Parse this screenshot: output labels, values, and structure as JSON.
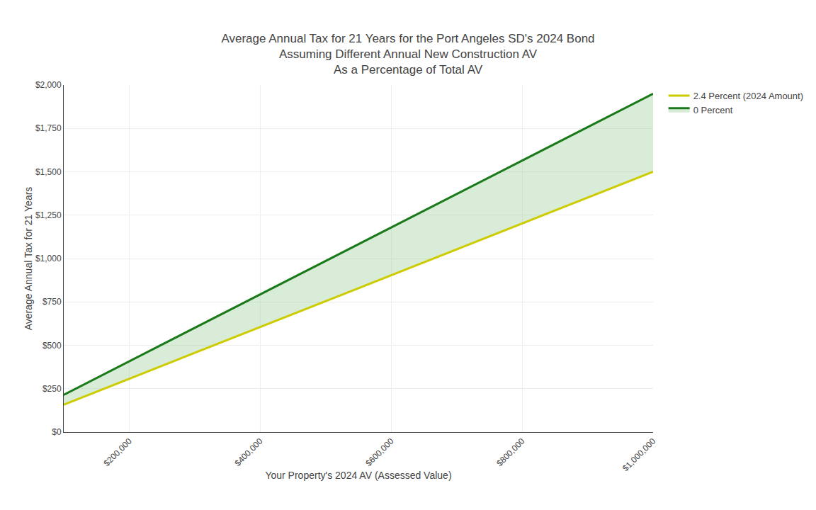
{
  "chart_data": {
    "type": "line",
    "title": "Average Annual Tax for 21 Years for the Port Angeles SD's 2024 Bond\nAssuming Different Annual New Construction AV\nAs a Percentage of Total AV",
    "x_label": "Your Property's 2024 AV (Assessed Value)",
    "y_label": "Average Annual Tax for 21 Years",
    "x": [
      100000,
      1000000
    ],
    "series": [
      {
        "name": "0 Percent",
        "color": "#1a7a1a",
        "values": [
          215,
          1950
        ]
      },
      {
        "name": "2.4 Percent (2024 Amount)",
        "color": "#cccc00",
        "values": [
          158,
          1500
        ]
      }
    ],
    "color": "#90c990",
    "xlim": [
      100000,
      1000000
    ],
    "xticks": [
      {
        "value": 200000,
        "label": "$200,000"
      },
      {
        "value": 400000,
        "label": "$400,000"
      },
      {
        "value": 600000,
        "label": "$600,000"
      },
      {
        "value": 800000,
        "label": "$800,000"
      },
      {
        "value": 1000000,
        "label": "$1,000,000"
      }
    ],
    "ylim": [
      0,
      2000
    ],
    "yticks": [
      {
        "value": 0,
        "label": "$0"
      },
      {
        "value": 250,
        "label": "$250"
      },
      {
        "value": 500,
        "label": "$500"
      },
      {
        "value": 750,
        "label": "$750"
      },
      {
        "value": 1000,
        "label": "$1,000"
      },
      {
        "value": 1250,
        "label": "$1,250"
      },
      {
        "value": 1500,
        "label": "$1,500"
      },
      {
        "value": 1750,
        "label": "$1,750"
      },
      {
        "value": 2000,
        "label": "$2,000"
      }
    ],
    "grid": true,
    "legend": "right"
  }
}
